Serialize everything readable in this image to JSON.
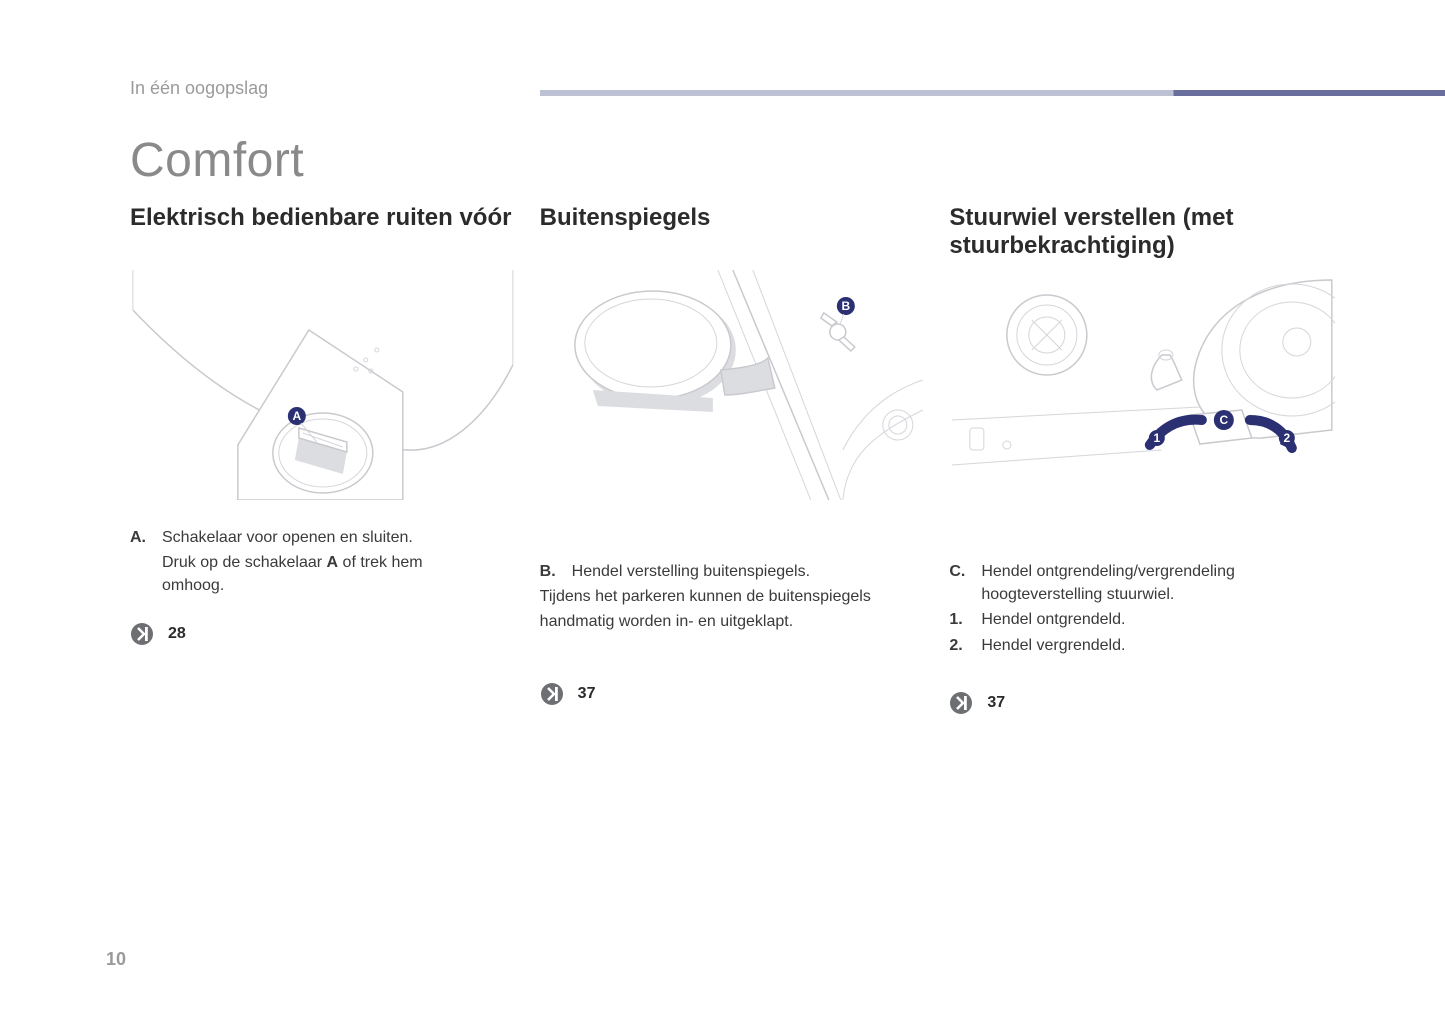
{
  "breadcrumb": "In één oogopslag",
  "title": "Comfort",
  "page_number": "10",
  "header_rule": {
    "light": "#9fa7c2",
    "dark": "#2a3072"
  },
  "ref_icon_color": "#6d6f73",
  "callout_badge_color": "#2a3072",
  "columns": {
    "windows": {
      "heading": "Elektrisch bedienbare ruiten vóór",
      "callout": "A",
      "items": [
        {
          "marker": "A.",
          "text": "Schakelaar voor openen en sluiten."
        }
      ],
      "sub_lines": [
        "Druk op de schakelaar A of trek hem",
        "omhoog."
      ],
      "bold_in_sub_index": 0,
      "bold_word": "A",
      "page_ref": "28"
    },
    "mirrors": {
      "heading": "Buitenspiegels",
      "callout": "B",
      "items": [
        {
          "marker": "B.",
          "text": "Hendel verstelling buitenspiegels."
        }
      ],
      "body_lines": [
        "Tijdens het parkeren kunnen de buitenspiegels",
        "handmatig worden in- en uitgeklapt."
      ],
      "page_ref": "37"
    },
    "steering": {
      "heading": "Stuurwiel verstellen (met stuurbekrachtiging)",
      "callout": "C",
      "motion_labels": [
        "1",
        "2"
      ],
      "items": [
        {
          "marker": "C.",
          "text": "Hendel ontgrendeling/vergrendeling hoogteverstelling stuurwiel."
        },
        {
          "marker": "1.",
          "text": "Hendel ontgrendeld."
        },
        {
          "marker": "2.",
          "text": "Hendel vergrendeld."
        }
      ],
      "page_ref": "37"
    }
  }
}
